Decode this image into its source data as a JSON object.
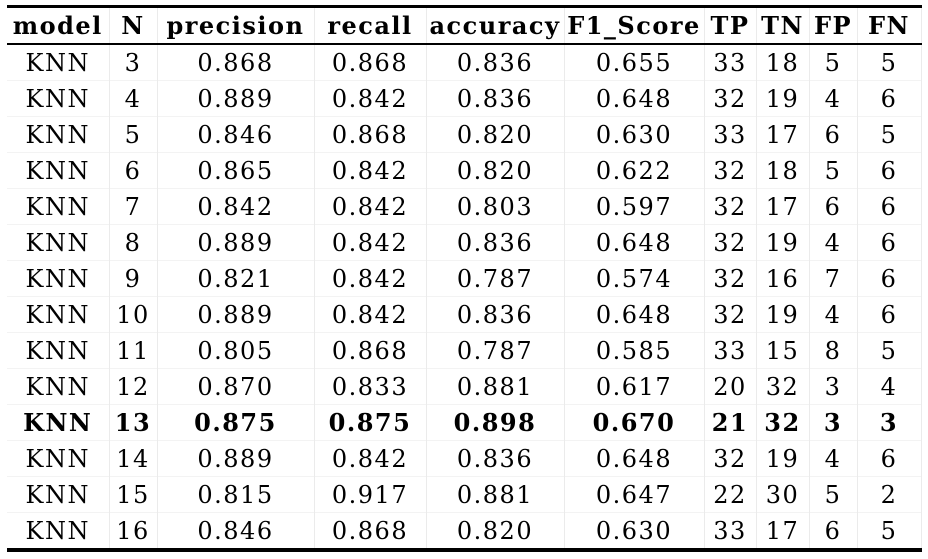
{
  "chart_data": {
    "type": "table",
    "columns": [
      "model",
      "N",
      "precision",
      "recall",
      "accuracy",
      "F1_Score",
      "TP",
      "TN",
      "FP",
      "FN"
    ],
    "rows": [
      [
        "KNN",
        "3",
        "0.868",
        "0.868",
        "0.836",
        "0.655",
        "33",
        "18",
        "5",
        "5"
      ],
      [
        "KNN",
        "4",
        "0.889",
        "0.842",
        "0.836",
        "0.648",
        "32",
        "19",
        "4",
        "6"
      ],
      [
        "KNN",
        "5",
        "0.846",
        "0.868",
        "0.820",
        "0.630",
        "33",
        "17",
        "6",
        "5"
      ],
      [
        "KNN",
        "6",
        "0.865",
        "0.842",
        "0.820",
        "0.622",
        "32",
        "18",
        "5",
        "6"
      ],
      [
        "KNN",
        "7",
        "0.842",
        "0.842",
        "0.803",
        "0.597",
        "32",
        "17",
        "6",
        "6"
      ],
      [
        "KNN",
        "8",
        "0.889",
        "0.842",
        "0.836",
        "0.648",
        "32",
        "19",
        "4",
        "6"
      ],
      [
        "KNN",
        "9",
        "0.821",
        "0.842",
        "0.787",
        "0.574",
        "32",
        "16",
        "7",
        "6"
      ],
      [
        "KNN",
        "10",
        "0.889",
        "0.842",
        "0.836",
        "0.648",
        "32",
        "19",
        "4",
        "6"
      ],
      [
        "KNN",
        "11",
        "0.805",
        "0.868",
        "0.787",
        "0.585",
        "33",
        "15",
        "8",
        "5"
      ],
      [
        "KNN",
        "12",
        "0.870",
        "0.833",
        "0.881",
        "0.617",
        "20",
        "32",
        "3",
        "4"
      ],
      [
        "KNN",
        "13",
        "0.875",
        "0.875",
        "0.898",
        "0.670",
        "21",
        "32",
        "3",
        "3"
      ],
      [
        "KNN",
        "14",
        "0.889",
        "0.842",
        "0.836",
        "0.648",
        "32",
        "19",
        "4",
        "6"
      ],
      [
        "KNN",
        "15",
        "0.815",
        "0.917",
        "0.881",
        "0.647",
        "22",
        "30",
        "5",
        "2"
      ],
      [
        "KNN",
        "16",
        "0.846",
        "0.868",
        "0.820",
        "0.630",
        "33",
        "17",
        "6",
        "5"
      ]
    ],
    "emphasized_row_index": 10,
    "layout": {
      "grid": "faint",
      "legend_position": "none"
    }
  },
  "colors": {
    "text": "#000000",
    "rule": "#000000",
    "grid_line": "#ebebeb",
    "background": "#ffffff"
  }
}
